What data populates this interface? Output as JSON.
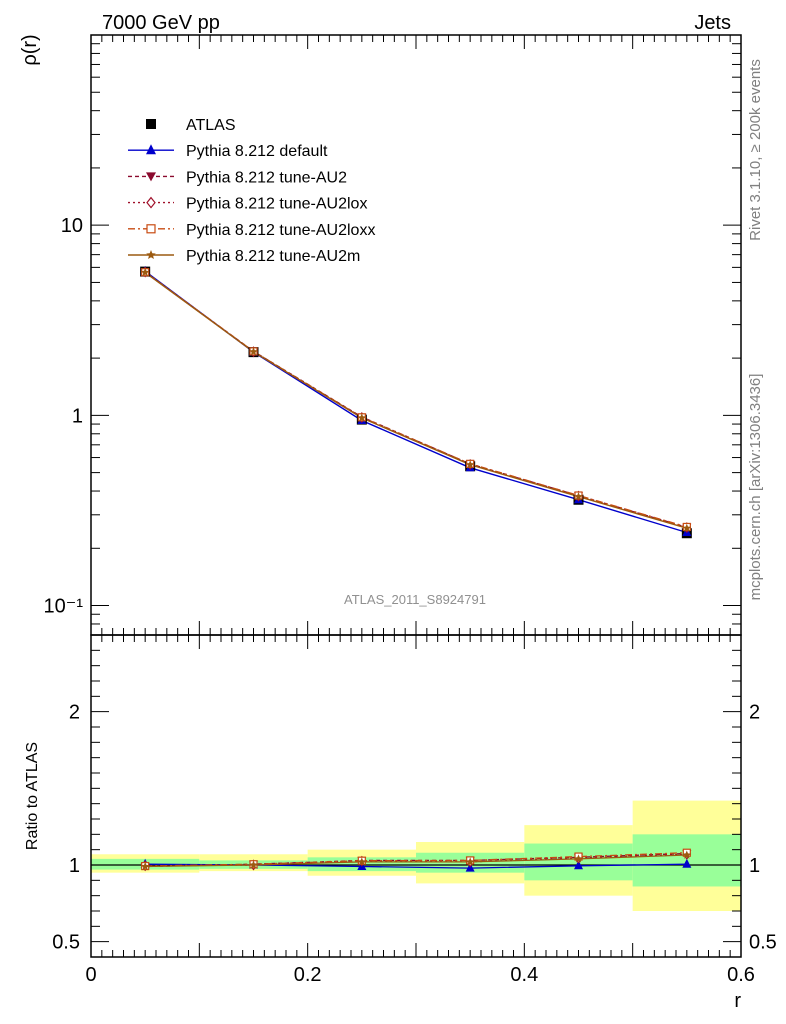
{
  "header": {
    "left": "7000 GeV pp",
    "right": "Jets"
  },
  "side_labels": {
    "rivet": "Rivet 3.1.10, ≥ 200k events",
    "mcplots": "mcplots.cern.ch [arXiv:1306.3436]"
  },
  "chart_data": {
    "type": "line",
    "title": "",
    "analysis_label": "ATLAS_2011_S8924791",
    "xlabel": "r",
    "ylabel": "ρ(r)",
    "ratio_ylabel": "Ratio to ATLAS",
    "xlim": [
      0,
      0.6
    ],
    "ylim": [
      0.07,
      100
    ],
    "yscale": "log",
    "ratio_ylim": [
      0.4,
      2.5
    ],
    "x": [
      0.05,
      0.15,
      0.25,
      0.35,
      0.45,
      0.55
    ],
    "x_ticks": [
      "0",
      "0.2",
      "0.4",
      "0.6"
    ],
    "main_y_ticks": [
      "10⁻¹",
      "1",
      "10"
    ],
    "ratio_y_ticks": [
      "0.5",
      "1",
      "2"
    ],
    "data": {
      "name": "ATLAS",
      "values": [
        5.7,
        2.15,
        0.95,
        0.54,
        0.36,
        0.24
      ]
    },
    "series": [
      {
        "name": "Pythia 8.212 default",
        "color": "#0000cc",
        "marker": "triangle-up",
        "dash": "",
        "values": [
          5.72,
          2.15,
          0.94,
          0.53,
          0.36,
          0.242
        ]
      },
      {
        "name": "Pythia 8.212 tune-AU2",
        "color": "#8b0a2e",
        "marker": "triangle-down",
        "dash": "4,3",
        "values": [
          5.65,
          2.17,
          0.98,
          0.555,
          0.378,
          0.258
        ]
      },
      {
        "name": "Pythia 8.212 tune-AU2lox",
        "color": "#a0102a",
        "marker": "diamond-open",
        "dash": "2,3",
        "values": [
          5.67,
          2.16,
          0.975,
          0.552,
          0.376,
          0.257
        ]
      },
      {
        "name": "Pythia 8.212 tune-AU2loxx",
        "color": "#c84b12",
        "marker": "square-open",
        "dash": "7,3,2,3",
        "values": [
          5.66,
          2.17,
          0.977,
          0.556,
          0.379,
          0.259
        ]
      },
      {
        "name": "Pythia 8.212 tune-AU2m",
        "color": "#9c5a10",
        "marker": "star",
        "dash": "",
        "values": [
          5.64,
          2.16,
          0.97,
          0.55,
          0.374,
          0.255
        ]
      }
    ],
    "ratios": [
      [
        1.005,
        1.0,
        0.99,
        0.98,
        0.995,
        1.005
      ],
      [
        0.99,
        1.005,
        1.03,
        1.03,
        1.05,
        1.075
      ],
      [
        0.995,
        1.0,
        1.025,
        1.02,
        1.045,
        1.07
      ],
      [
        0.993,
        1.005,
        1.028,
        1.03,
        1.055,
        1.08
      ],
      [
        0.99,
        1.0,
        1.02,
        1.02,
        1.04,
        1.065
      ]
    ],
    "bands": {
      "yellow": [
        [
          0.95,
          1.07
        ],
        [
          0.96,
          1.07
        ],
        [
          0.93,
          1.1
        ],
        [
          0.88,
          1.15
        ],
        [
          0.8,
          1.26
        ],
        [
          0.7,
          1.42
        ]
      ],
      "green": [
        [
          0.97,
          1.04
        ],
        [
          0.975,
          1.03
        ],
        [
          0.96,
          1.05
        ],
        [
          0.95,
          1.08
        ],
        [
          0.9,
          1.14
        ],
        [
          0.86,
          1.2
        ]
      ]
    },
    "legend_position": "top-left"
  }
}
